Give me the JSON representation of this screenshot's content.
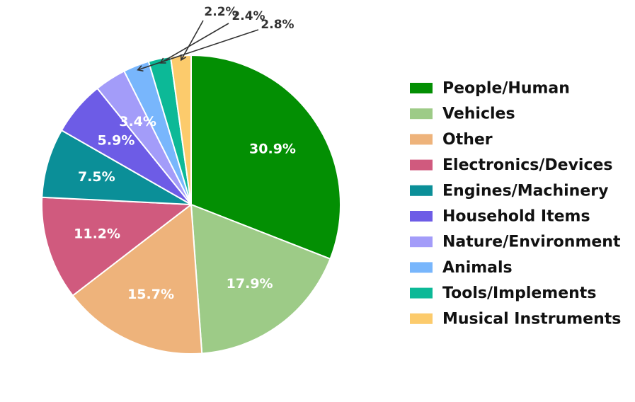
{
  "chart_data": {
    "type": "pie",
    "title": "",
    "legend_position": "right",
    "start_angle_deg": 90,
    "direction": "clockwise",
    "slices": [
      {
        "label": "People/Human",
        "value": 30.9,
        "display": "30.9%",
        "color": "#038f03",
        "legend_text": "People/Human",
        "label_style": "inside"
      },
      {
        "label": "Vehicles",
        "value": 17.9,
        "display": "17.9%",
        "color": "#9dcb87",
        "legend_text": "Vehicles",
        "label_style": "inside"
      },
      {
        "label": "Other",
        "value": 15.7,
        "display": "15.7%",
        "color": "#eeb37b",
        "legend_text": "Other",
        "label_style": "inside"
      },
      {
        "label": "Electronics/Devices",
        "value": 11.2,
        "display": "11.2%",
        "color": "#d05a7e",
        "legend_text": "Electronics/Devices",
        "label_style": "inside"
      },
      {
        "label": "Engines/Machinery",
        "value": 7.5,
        "display": "7.5%",
        "color": "#0b8f98",
        "legend_text": "Engines/Machinery",
        "label_style": "inside"
      },
      {
        "label": "Household Items",
        "value": 5.9,
        "display": "5.9%",
        "color": "#6d5ce6",
        "legend_text": "Household Items",
        "label_style": "inside"
      },
      {
        "label": "Nature/Environment",
        "value": 3.4,
        "display": "3.4%",
        "color": "#a39cf9",
        "legend_text": "Nature/Environment",
        "label_style": "inside"
      },
      {
        "label": "Animals",
        "value": 2.8,
        "display": "2.8%",
        "color": "#78b6fc",
        "legend_text": "Animals",
        "label_style": "callout"
      },
      {
        "label": "Tools/Implements",
        "value": 2.4,
        "display": "2.4%",
        "color": "#0cb997",
        "legend_text": "Tools/Implements",
        "label_style": "callout"
      },
      {
        "label": "Musical Instruments",
        "value": 2.2,
        "display": "2.2%",
        "color": "#fccb6c",
        "legend_text": "Musical Instruments",
        "label_style": "callout"
      }
    ]
  }
}
